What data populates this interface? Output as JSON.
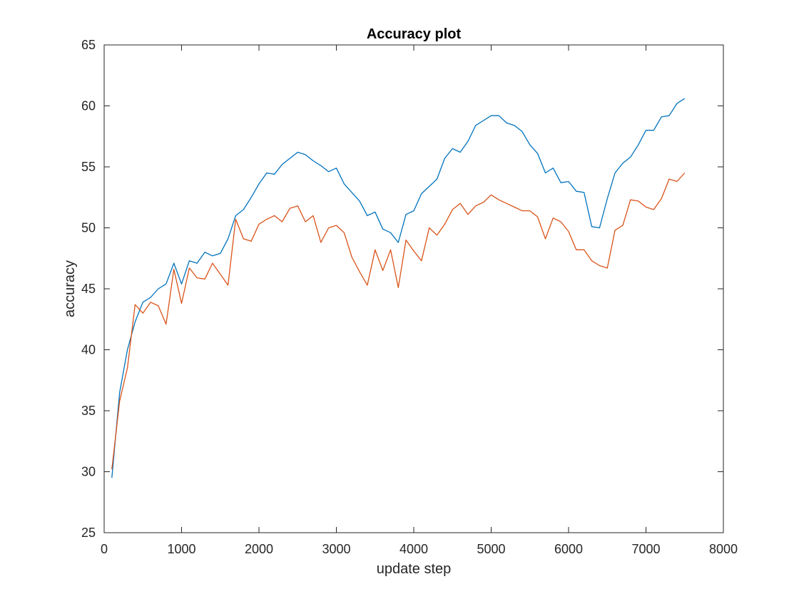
{
  "chart_data": {
    "type": "line",
    "title": "Accuracy plot",
    "xlabel": "update step",
    "ylabel": "accuracy",
    "xlim": [
      0,
      8000
    ],
    "ylim": [
      25,
      65
    ],
    "xticks": [
      0,
      1000,
      2000,
      3000,
      4000,
      5000,
      6000,
      7000,
      8000
    ],
    "yticks": [
      25,
      30,
      35,
      40,
      45,
      50,
      55,
      60,
      65
    ],
    "grid": false,
    "legend": "none",
    "x": [
      100,
      200,
      300,
      400,
      500,
      600,
      700,
      800,
      900,
      1000,
      1100,
      1200,
      1300,
      1400,
      1500,
      1600,
      1700,
      1800,
      1900,
      2000,
      2100,
      2200,
      2300,
      2400,
      2500,
      2600,
      2700,
      2800,
      2900,
      3000,
      3100,
      3200,
      3300,
      3400,
      3500,
      3600,
      3700,
      3800,
      3900,
      4000,
      4100,
      4200,
      4300,
      4400,
      4500,
      4600,
      4700,
      4800,
      4900,
      5000,
      5100,
      5200,
      5300,
      5400,
      5500,
      5600,
      5700,
      5800,
      5900,
      6000,
      6100,
      6200,
      6300,
      6400,
      6500,
      6600,
      6700,
      6800,
      6900,
      7000,
      7100,
      7200,
      7300,
      7400,
      7500
    ],
    "series": [
      {
        "color": "#0072BD",
        "values": [
          29.5,
          36.5,
          40.0,
          42.3,
          43.9,
          44.3,
          45.0,
          45.4,
          47.1,
          45.4,
          47.3,
          47.1,
          48.0,
          47.7,
          47.9,
          49.1,
          51.0,
          51.5,
          52.5,
          53.6,
          54.5,
          54.4,
          55.2,
          55.7,
          56.2,
          56.0,
          55.5,
          55.1,
          54.6,
          54.9,
          53.6,
          52.9,
          52.2,
          51.0,
          51.3,
          49.9,
          49.6,
          48.8,
          51.1,
          51.4,
          52.8,
          53.4,
          54.0,
          55.7,
          56.5,
          56.2,
          57.1,
          58.4,
          58.8,
          59.2,
          59.2,
          58.6,
          58.4,
          57.9,
          56.8,
          56.1,
          54.5,
          54.9,
          53.7,
          53.8,
          53.0,
          52.9,
          50.1,
          50.0,
          52.4,
          54.5,
          55.3,
          55.8,
          56.8,
          58.0,
          58.0,
          59.1,
          59.2,
          60.2,
          60.6
        ]
      },
      {
        "color": "#D95319",
        "values": [
          30.2,
          35.8,
          38.5,
          43.7,
          43.0,
          43.9,
          43.6,
          42.1,
          46.6,
          43.8,
          46.7,
          45.9,
          45.8,
          47.1,
          46.2,
          45.3,
          50.7,
          49.1,
          48.9,
          50.3,
          50.7,
          51.0,
          50.5,
          51.6,
          51.8,
          50.5,
          51.0,
          48.8,
          50.0,
          50.2,
          49.6,
          47.6,
          46.4,
          45.3,
          48.2,
          46.5,
          48.2,
          45.1,
          49.0,
          48.1,
          47.3,
          50.0,
          49.4,
          50.3,
          51.5,
          52.0,
          51.1,
          51.8,
          52.1,
          52.7,
          52.3,
          52.0,
          51.7,
          51.4,
          51.4,
          50.9,
          49.1,
          50.8,
          50.5,
          49.7,
          48.2,
          48.2,
          47.3,
          46.9,
          46.7,
          49.8,
          50.2,
          52.3,
          52.2,
          51.7,
          51.5,
          52.4,
          54.0,
          53.8,
          54.5
        ]
      }
    ]
  }
}
